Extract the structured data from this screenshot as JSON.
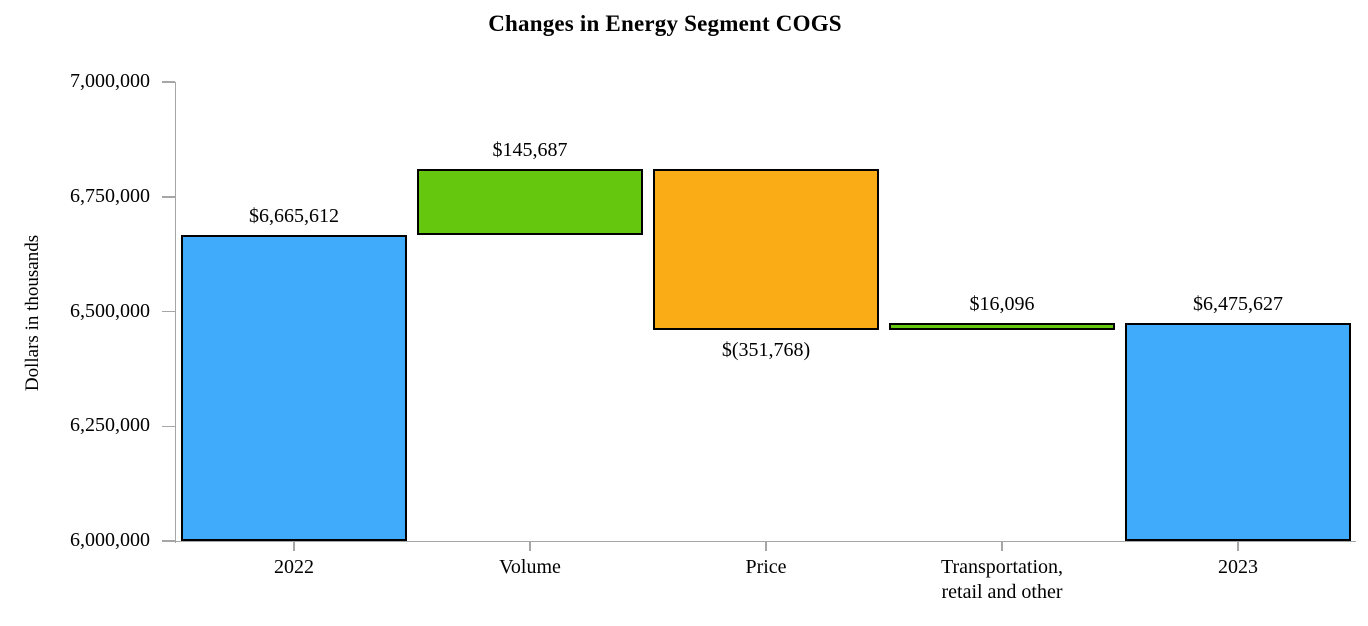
{
  "chart_data": {
    "type": "bar",
    "subtype": "waterfall",
    "title": "Changes in Energy Segment COGS",
    "ylabel": "Dollars in thousands",
    "xlabel": "",
    "ylim": [
      6000000,
      7000000
    ],
    "grid": false,
    "legend": false,
    "y_ticks": [
      {
        "value": 7000000,
        "label": "7,000,000"
      },
      {
        "value": 6750000,
        "label": "6,750,000"
      },
      {
        "value": 6500000,
        "label": "6,500,000"
      },
      {
        "value": 6250000,
        "label": "6,250,000"
      },
      {
        "value": 6000000,
        "label": "6,000,000"
      }
    ],
    "colors": {
      "total": "#3fabfa",
      "increase": "#65c80f",
      "decrease": "#f9ac15",
      "bar_border": "#000000",
      "axis": "#a6a6a6",
      "text": "#000000"
    },
    "bars": [
      {
        "category": "2022",
        "value": 6665612,
        "start": 6000000,
        "end": 6665612,
        "role": "total",
        "value_label": "$6,665,612",
        "label_position": "above"
      },
      {
        "category": "Volume",
        "value": 145687,
        "start": 6665612,
        "end": 6811299,
        "role": "increase",
        "value_label": "$145,687",
        "label_position": "above"
      },
      {
        "category": "Price",
        "value": -351768,
        "start": 6811299,
        "end": 6459531,
        "role": "decrease",
        "value_label": "$(351,768)",
        "label_position": "below"
      },
      {
        "category": "Transportation,\nretail and other",
        "value": 16096,
        "start": 6459531,
        "end": 6475627,
        "role": "increase",
        "value_label": "$16,096",
        "label_position": "above"
      },
      {
        "category": "2023",
        "value": 6475627,
        "start": 6000000,
        "end": 6475627,
        "role": "total",
        "value_label": "$6,475,627",
        "label_position": "above"
      }
    ]
  }
}
